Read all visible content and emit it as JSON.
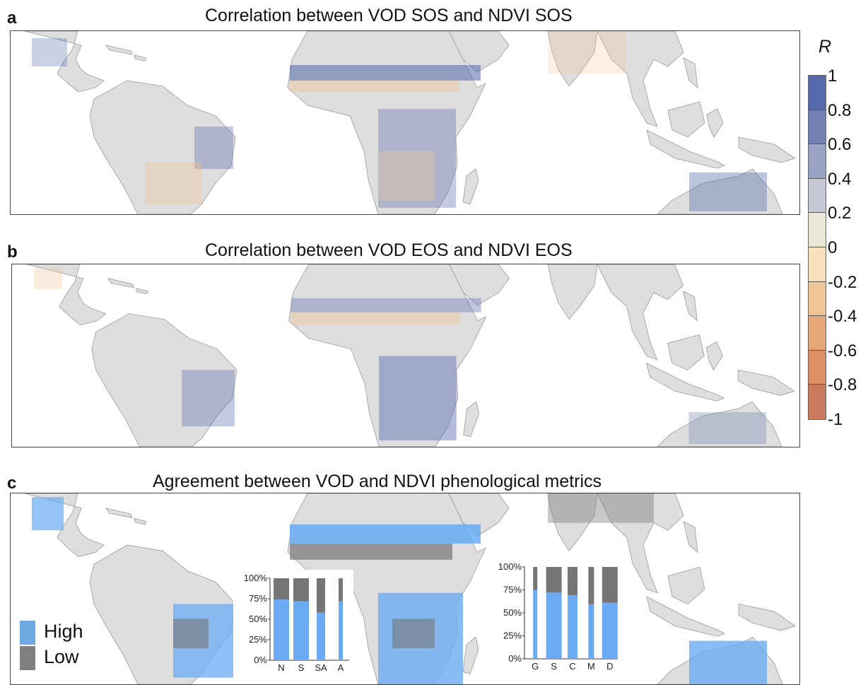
{
  "panels": [
    {
      "letter": "a",
      "title": "Correlation between VOD SOS and NDVI SOS"
    },
    {
      "letter": "b",
      "title": "Correlation between VOD EOS and NDVI EOS"
    },
    {
      "letter": "c",
      "title": "Agreement between VOD and NDVI phenological metrics"
    }
  ],
  "colorbar": {
    "title": "R",
    "labels": [
      "1",
      "0.8",
      "0.6",
      "0.4",
      "0.2",
      "0",
      "-0.2",
      "-0.4",
      "-0.6",
      "-0.8",
      "-1"
    ],
    "colors": [
      "#5468aa",
      "#7280b4",
      "#9ba3c7",
      "#c5c9d5",
      "#e9e8d6",
      "#f8e1bb",
      "#f0c595",
      "#e6a878",
      "#dc8e64",
      "#c97a5e"
    ]
  },
  "agreement_legend": [
    {
      "label": "High",
      "color": "#6fa7e3"
    },
    {
      "label": "Low",
      "color": "#7f7f7f"
    }
  ],
  "map_colors": {
    "land": "#dedede",
    "coast": "#9a9a9a",
    "high": "#6aabf3",
    "low": "#767676"
  },
  "insets": [
    {
      "y_ticks": [
        "100%",
        "75%",
        "50%",
        "25%",
        "0%"
      ],
      "categories": [
        "N",
        "S",
        "SA",
        "A"
      ],
      "high_fraction": [
        0.74,
        0.72,
        0.58,
        0.72
      ]
    },
    {
      "y_ticks": [
        "100%",
        "75%",
        "50%",
        "25%",
        "0%"
      ],
      "categories": [
        "G",
        "S",
        "C",
        "M",
        "D"
      ],
      "high_fraction": [
        0.75,
        0.72,
        0.69,
        0.59,
        0.61
      ]
    }
  ]
}
